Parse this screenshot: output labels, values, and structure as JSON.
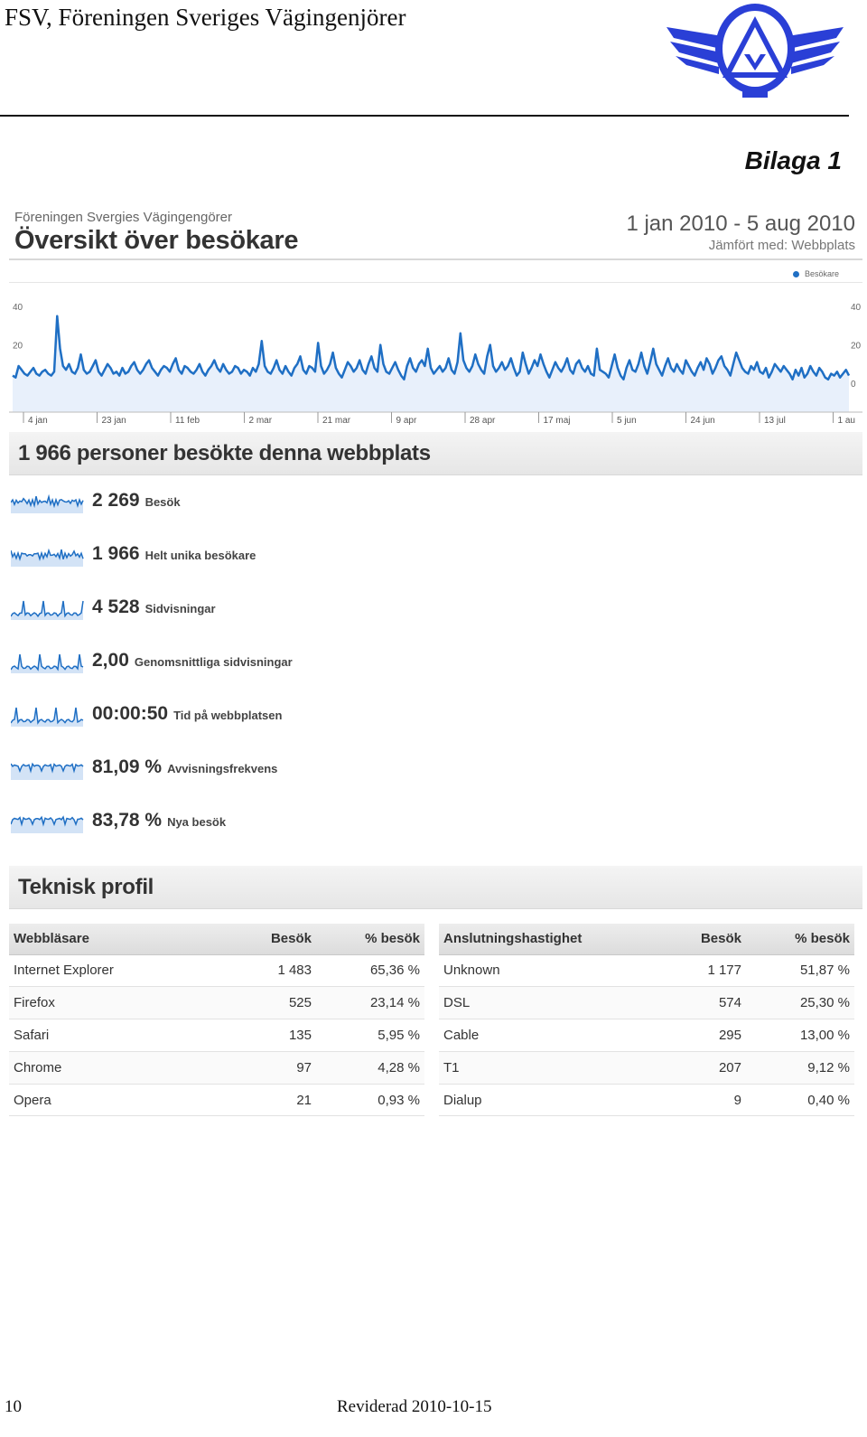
{
  "document": {
    "header_title": "FSV, Föreningen Sveriges Vägingenjörer",
    "attachment_label": "Bilaga 1",
    "page_number": "10",
    "revised": "Reviderad 2010-10-15"
  },
  "report": {
    "org": "Föreningen Svergies Vägingengörer",
    "title": "Översikt över besökare",
    "date_range": "1 jan 2010 - 5 aug 2010",
    "compare": "Jämfört med: Webbplats",
    "legend": "Besökare",
    "accent_color": "#1f6fc4"
  },
  "chart_data": {
    "type": "line",
    "series": [
      {
        "name": "Besökare",
        "values": [
          4,
          3,
          9,
          7,
          5,
          4,
          6,
          8,
          5,
          4,
          6,
          7,
          5,
          4,
          6,
          35,
          18,
          9,
          7,
          10,
          6,
          5,
          8,
          15,
          7,
          5,
          6,
          9,
          12,
          6,
          4,
          7,
          10,
          8,
          5,
          6,
          4,
          8,
          5,
          6,
          9,
          11,
          7,
          5,
          7,
          10,
          12,
          8,
          6,
          4,
          7,
          9,
          8,
          6,
          10,
          13,
          7,
          5,
          9,
          8,
          6,
          5,
          7,
          10,
          6,
          4,
          7,
          9,
          12,
          8,
          6,
          10,
          7,
          5,
          6,
          9,
          8,
          5,
          7,
          6,
          4,
          8,
          6,
          10,
          22,
          9,
          6,
          5,
          8,
          12,
          7,
          5,
          9,
          6,
          4,
          8,
          10,
          14,
          7,
          5,
          9,
          8,
          6,
          21,
          9,
          5,
          7,
          10,
          16,
          8,
          5,
          3,
          7,
          11,
          9,
          6,
          8,
          12,
          7,
          5,
          10,
          14,
          8,
          6,
          20,
          10,
          6,
          5,
          8,
          11,
          7,
          4,
          2,
          9,
          13,
          8,
          6,
          10,
          12,
          9,
          18,
          8,
          5,
          7,
          9,
          6,
          8,
          13,
          7,
          5,
          11,
          26,
          12,
          8,
          6,
          9,
          15,
          10,
          7,
          5,
          14,
          20,
          9,
          6,
          8,
          11,
          7,
          9,
          13,
          8,
          4,
          6,
          16,
          10,
          5,
          8,
          12,
          9,
          15,
          10,
          6,
          3,
          7,
          11,
          8,
          6,
          9,
          13,
          7,
          5,
          10,
          12,
          8,
          6,
          9,
          5,
          4,
          18,
          7,
          6,
          5,
          3,
          9,
          15,
          8,
          4,
          2,
          8,
          12,
          7,
          6,
          10,
          16,
          9,
          5,
          11,
          18,
          10,
          7,
          4,
          9,
          13,
          8,
          6,
          10,
          7,
          5,
          12,
          9,
          6,
          4,
          8,
          11,
          7,
          13,
          10,
          5,
          8,
          12,
          14,
          9,
          7,
          4,
          10,
          16,
          12,
          8,
          6,
          5,
          9,
          7,
          11,
          6,
          5,
          8,
          3,
          6,
          10,
          8,
          6,
          9,
          7,
          5,
          2,
          7,
          4,
          8,
          3,
          5,
          9,
          6,
          4,
          8,
          6,
          3,
          2,
          5,
          4,
          6,
          3,
          5,
          7,
          4
        ],
        "color": "#1f6fc4"
      }
    ],
    "x_tick_labels": [
      "4 jan",
      "23 jan",
      "11 feb",
      "2 mar",
      "21 mar",
      "9 apr",
      "28 apr",
      "17 maj",
      "5 jun",
      "24 jun",
      "13 jul",
      "1 au"
    ],
    "y_tick_labels": [
      "40",
      "20",
      "0"
    ],
    "ylim": [
      -15,
      48
    ],
    "grid": false,
    "legend_position": "top-right"
  },
  "summary": {
    "heading": "1 966 personer besökte denna webbplats",
    "metrics": [
      {
        "value": "2 269",
        "label": "Besök",
        "spark": "wave"
      },
      {
        "value": "1 966",
        "label": "Helt unika besökare",
        "spark": "wave"
      },
      {
        "value": "4 528",
        "label": "Sidvisningar",
        "spark": "spiky"
      },
      {
        "value": "2,00",
        "label": "Genomsnittliga sidvisningar",
        "spark": "spiky"
      },
      {
        "value": "00:00:50",
        "label": "Tid på webbplatsen",
        "spark": "spiky"
      },
      {
        "value": "81,09 %",
        "label": "Avvisningsfrekvens",
        "spark": "flat"
      },
      {
        "value": "83,78 %",
        "label": "Nya besök",
        "spark": "flat"
      }
    ]
  },
  "tech": {
    "heading": "Teknisk profil",
    "browsers": {
      "headers": [
        "Webbläsare",
        "Besök",
        "% besök"
      ],
      "rows": [
        [
          "Internet Explorer",
          "1 483",
          "65,36 %"
        ],
        [
          "Firefox",
          "525",
          "23,14 %"
        ],
        [
          "Safari",
          "135",
          "5,95 %"
        ],
        [
          "Chrome",
          "97",
          "4,28 %"
        ],
        [
          "Opera",
          "21",
          "0,93 %"
        ]
      ]
    },
    "connections": {
      "headers": [
        "Anslutningshastighet",
        "Besök",
        "% besök"
      ],
      "rows": [
        [
          "Unknown",
          "1 177",
          "51,87 %"
        ],
        [
          "DSL",
          "574",
          "25,30 %"
        ],
        [
          "Cable",
          "295",
          "13,00 %"
        ],
        [
          "T1",
          "207",
          "9,12 %"
        ],
        [
          "Dialup",
          "9",
          "0,40 %"
        ]
      ]
    }
  }
}
